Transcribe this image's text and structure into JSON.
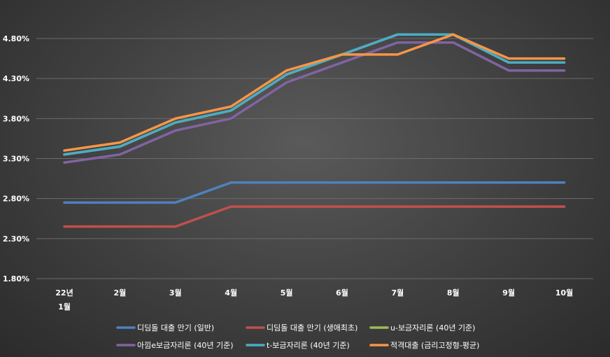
{
  "chart_data": {
    "type": "line",
    "categories": [
      "22년\n1월",
      "2월",
      "3월",
      "4월",
      "5월",
      "6월",
      "7월",
      "8월",
      "9월",
      "10월"
    ],
    "y_ticks": [
      "1.80%",
      "2.30%",
      "2.80%",
      "3.30%",
      "3.80%",
      "4.30%",
      "4.80%"
    ],
    "ylim": [
      1.8,
      4.8
    ],
    "grid": true,
    "legend_position": "bottom",
    "series": [
      {
        "name": "디딤돌 대출 만기 (일반)",
        "color": "#4f81bd",
        "values": [
          2.75,
          2.75,
          2.75,
          3.0,
          3.0,
          3.0,
          3.0,
          3.0,
          3.0,
          3.0
        ]
      },
      {
        "name": "디딤돌 대출 만기 (생애최초)",
        "color": "#c0504d",
        "values": [
          2.45,
          2.45,
          2.45,
          2.7,
          2.7,
          2.7,
          2.7,
          2.7,
          2.7,
          2.7
        ]
      },
      {
        "name": "u-보금자리론 (40년 기준)",
        "color": "#9bbb59",
        "values": [
          3.35,
          3.45,
          3.75,
          3.9,
          4.35,
          4.6,
          4.85,
          4.85,
          4.5,
          4.5
        ]
      },
      {
        "name": "아낌e보금자리론 (40년 기준)",
        "color": "#8064a2",
        "values": [
          3.25,
          3.35,
          3.65,
          3.8,
          4.25,
          4.5,
          4.75,
          4.75,
          4.4,
          4.4
        ]
      },
      {
        "name": "t-보금자리론 (40년 기준)",
        "color": "#4bacc6",
        "values": [
          3.35,
          3.45,
          3.75,
          3.9,
          4.35,
          4.6,
          4.85,
          4.85,
          4.5,
          4.5
        ]
      },
      {
        "name": "적격대출 (금리고정형-평균)",
        "color": "#f79646",
        "values": [
          3.4,
          3.5,
          3.8,
          3.95,
          4.4,
          4.6,
          4.6,
          4.85,
          4.55,
          4.55
        ]
      }
    ]
  }
}
